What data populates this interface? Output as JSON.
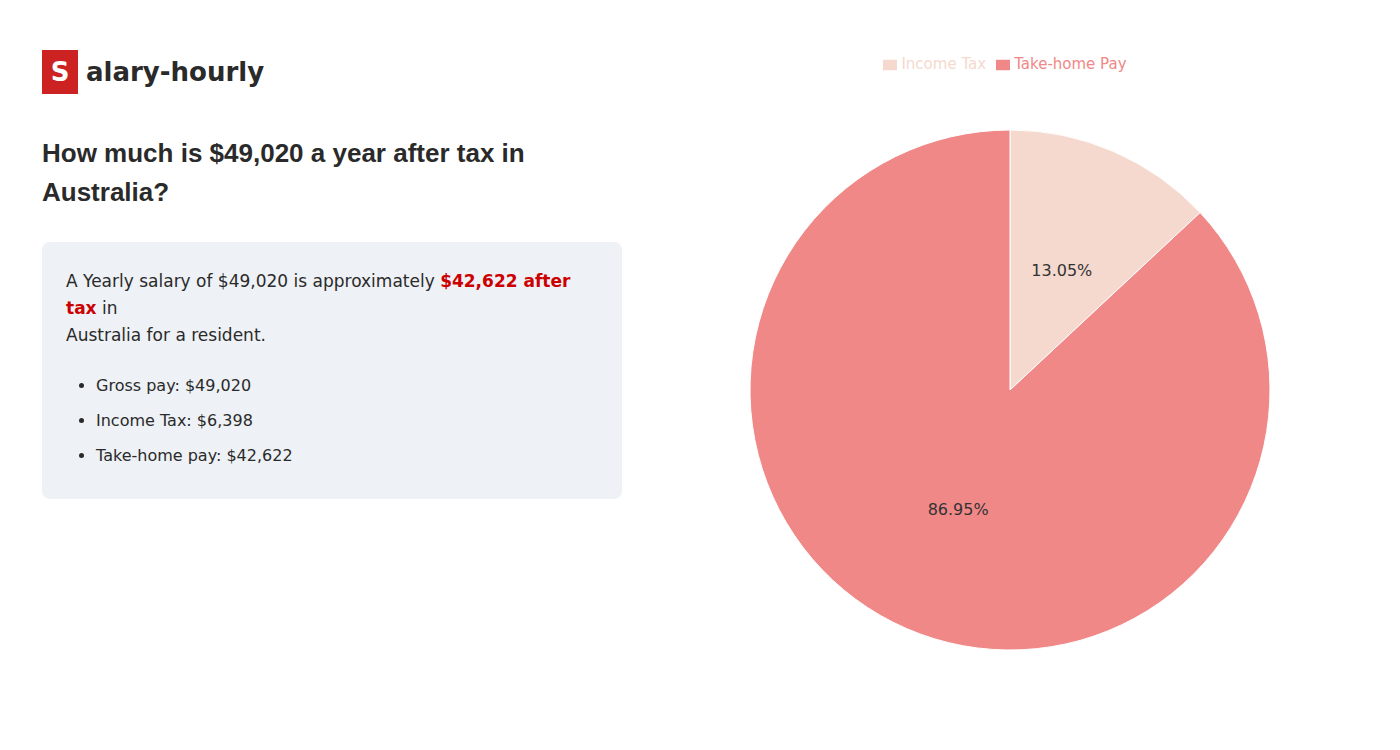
{
  "chart_data": {
    "type": "pie",
    "title": [
      "How much is $49,020 a year after tax in",
      "Australia?"
    ],
    "annotations": [
      {
        "text": "S",
        "color": "#cc2222"
      },
      {
        "text": "alary-hourly"
      },
      {
        "text": "A Yearly salary of $49,020 is approximately "
      },
      {
        "text": "$42,622 after tax",
        "color": "#cc0000"
      },
      {
        "text": " in"
      },
      {
        "text": "Australia for a resident."
      },
      {
        "text": "Gross pay: $49,020"
      },
      {
        "text": "Income Tax: $6,398"
      },
      {
        "text": "Take-home pay: $42,622"
      }
    ],
    "categories": [
      "Income Tax",
      "Take-home Pay"
    ],
    "values": [
      13.05,
      86.95
    ],
    "value_labels": [
      "13.05%",
      "86.95%"
    ],
    "colors": [
      "#f5d9ce",
      "#f08888"
    ],
    "data_labels": true,
    "legend": "top"
  }
}
